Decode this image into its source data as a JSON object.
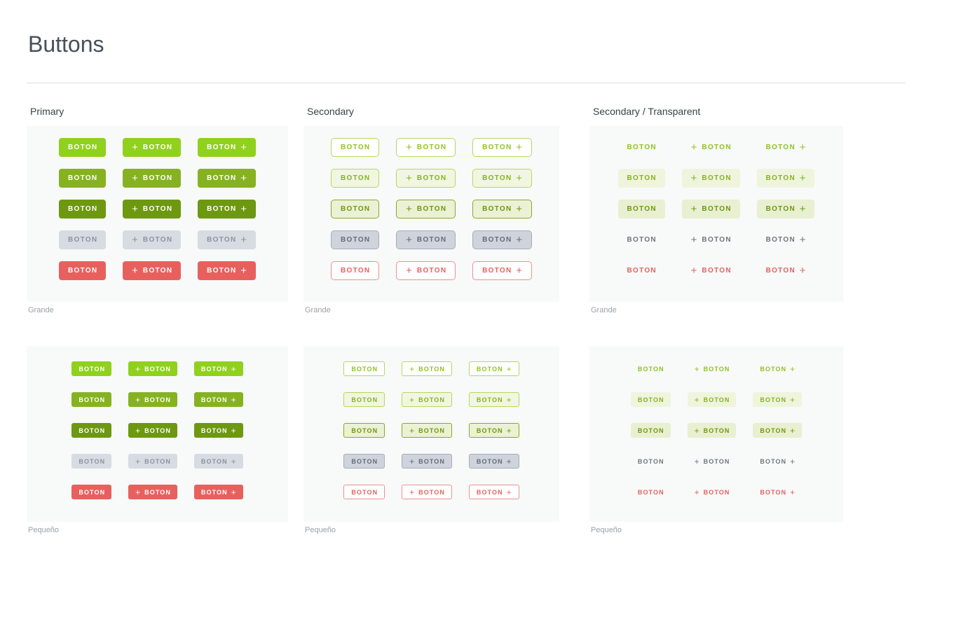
{
  "page": {
    "title": "Buttons"
  },
  "labels": {
    "button": "BOTON",
    "plus": "+"
  },
  "sections": [
    {
      "id": "primary",
      "style": "primary",
      "title": "Primary"
    },
    {
      "id": "secondary",
      "style": "secondary",
      "title": "Secondary"
    },
    {
      "id": "transparent",
      "style": "transparent",
      "title": "Secondary / Transparent"
    }
  ],
  "sizes": [
    {
      "id": "grande",
      "label": "Grande"
    },
    {
      "id": "pequeno",
      "label": "Pequeño"
    }
  ],
  "variants": [
    {
      "id": "lime",
      "color": "#90d11d"
    },
    {
      "id": "olive",
      "color": "#86b222"
    },
    {
      "id": "dark-olive",
      "color": "#6d9810"
    },
    {
      "id": "disabled",
      "color": "#d7dbe2"
    },
    {
      "id": "danger",
      "color": "#e8605e"
    }
  ],
  "arrangements": [
    {
      "id": "plain",
      "plus": "none"
    },
    {
      "id": "plus-left",
      "plus": "left"
    },
    {
      "id": "plus-right",
      "plus": "right"
    }
  ],
  "colors": {
    "lime": "#90d11d",
    "olive": "#86b222",
    "dark_olive": "#6d9810",
    "disabled_bg": "#d7dbe2",
    "disabled_text": "#8a93a0",
    "danger_red": "#e8605e",
    "panel_bg": "#f8f9f9",
    "tint_green_light": "#f1f6e0",
    "tint_green_deep": "#eaf0d3",
    "secondary_disabled_bg": "#ced3dc",
    "title_text": "#47505a",
    "column_title_text": "#3a4148",
    "panel_label_text": "#9aa0a8",
    "divider": "#dbdcdd",
    "button_text_on_color": "#ffffff"
  }
}
